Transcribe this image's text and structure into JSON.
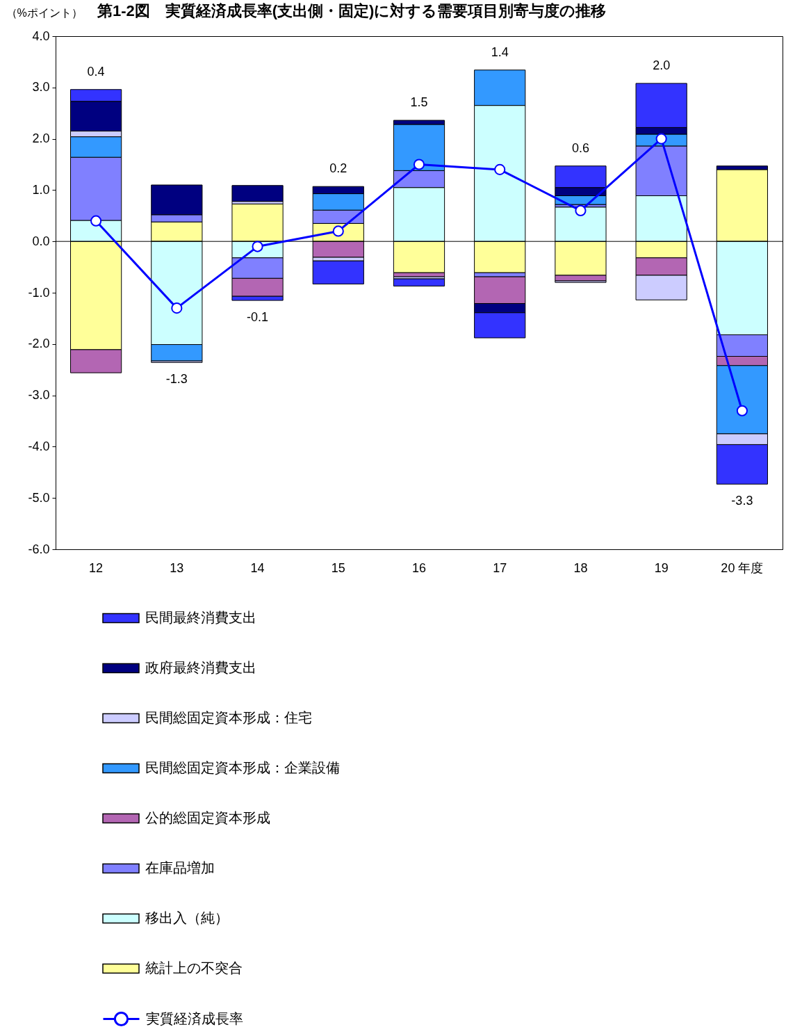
{
  "chart_data": {
    "type": "bar",
    "title": "第1-2図　実質経済成長率(支出側・固定)に対する需要項目別寄与度の推移",
    "ylabel": "（%ポイント）",
    "categories": [
      "12",
      "13",
      "14",
      "15",
      "16",
      "17",
      "18",
      "19",
      "20 年度"
    ],
    "stacked": true,
    "series": [
      {
        "name": "統計上の不突合",
        "color": "#ffff99",
        "values": [
          -2.11,
          0.38,
          0.73,
          0.35,
          -0.61,
          -0.61,
          -0.66,
          -0.32,
          1.4
        ]
      },
      {
        "name": "移出入（純）",
        "color": "#ccffff",
        "values": [
          0.41,
          -2.01,
          -0.32,
          null,
          1.05,
          2.65,
          0.67,
          0.89,
          -1.82
        ]
      },
      {
        "name": "在庫品増加",
        "color": "#8080ff",
        "values": [
          1.23,
          0.14,
          -0.4,
          0.26,
          0.33,
          -0.08,
          0.05,
          0.97,
          -0.42
        ]
      },
      {
        "name": "公的総固定資本形成",
        "color": "#b366b3",
        "values": [
          -0.45,
          null,
          -0.35,
          -0.31,
          -0.08,
          -0.52,
          -0.11,
          -0.34,
          -0.18
        ]
      },
      {
        "name": "民間総固定資本形成：企業設備",
        "color": "#3399ff",
        "values": [
          0.4,
          -0.32,
          null,
          0.32,
          0.9,
          0.69,
          0.17,
          0.23,
          -1.33
        ]
      },
      {
        "name": "民間総固定資本形成：住宅",
        "color": "#ccccff",
        "values": [
          0.11,
          -0.03,
          0.05,
          -0.07,
          -0.04,
          null,
          -0.03,
          -0.48,
          -0.21
        ]
      },
      {
        "name": "政府最終消費支出",
        "color": "#000080",
        "values": [
          0.58,
          0.58,
          0.31,
          0.14,
          0.08,
          -0.18,
          0.16,
          0.13,
          0.07
        ]
      },
      {
        "name": "民間最終消費支出",
        "color": "#3333ff",
        "values": [
          0.23,
          null,
          -0.08,
          -0.45,
          -0.14,
          -0.49,
          0.42,
          0.86,
          -0.77
        ]
      },
      {
        "name": "実質経済成長率",
        "type": "line",
        "color": "#0000ff",
        "values": [
          0.4,
          -1.3,
          -0.1,
          0.2,
          1.5,
          1.4,
          0.6,
          2.0,
          -3.3
        ]
      }
    ],
    "totals": [
      "0.4",
      "-1.3",
      "-0.1",
      "0.2",
      "1.5",
      "1.4",
      "0.6",
      "2.0",
      "-3.3"
    ],
    "ylim": [
      -6,
      4
    ],
    "yticks": [
      {
        "value": 4,
        "label": "4.0"
      },
      {
        "value": 3,
        "label": "3.0"
      },
      {
        "value": 2,
        "label": "2.0"
      },
      {
        "value": 1,
        "label": "1.0"
      },
      {
        "value": 0,
        "label": "0.0"
      },
      {
        "value": -1,
        "label": "-1.0"
      },
      {
        "value": -2,
        "label": "-2.0"
      },
      {
        "value": -3,
        "label": "-3.0"
      },
      {
        "value": -4,
        "label": "-4.0"
      },
      {
        "value": -5,
        "label": "-5.0"
      },
      {
        "value": -6,
        "label": "-6.0"
      }
    ],
    "ref_lines": [
      {
        "axis": "y",
        "value": 0
      }
    ],
    "legend": "bottom left",
    "marker": "circle"
  }
}
